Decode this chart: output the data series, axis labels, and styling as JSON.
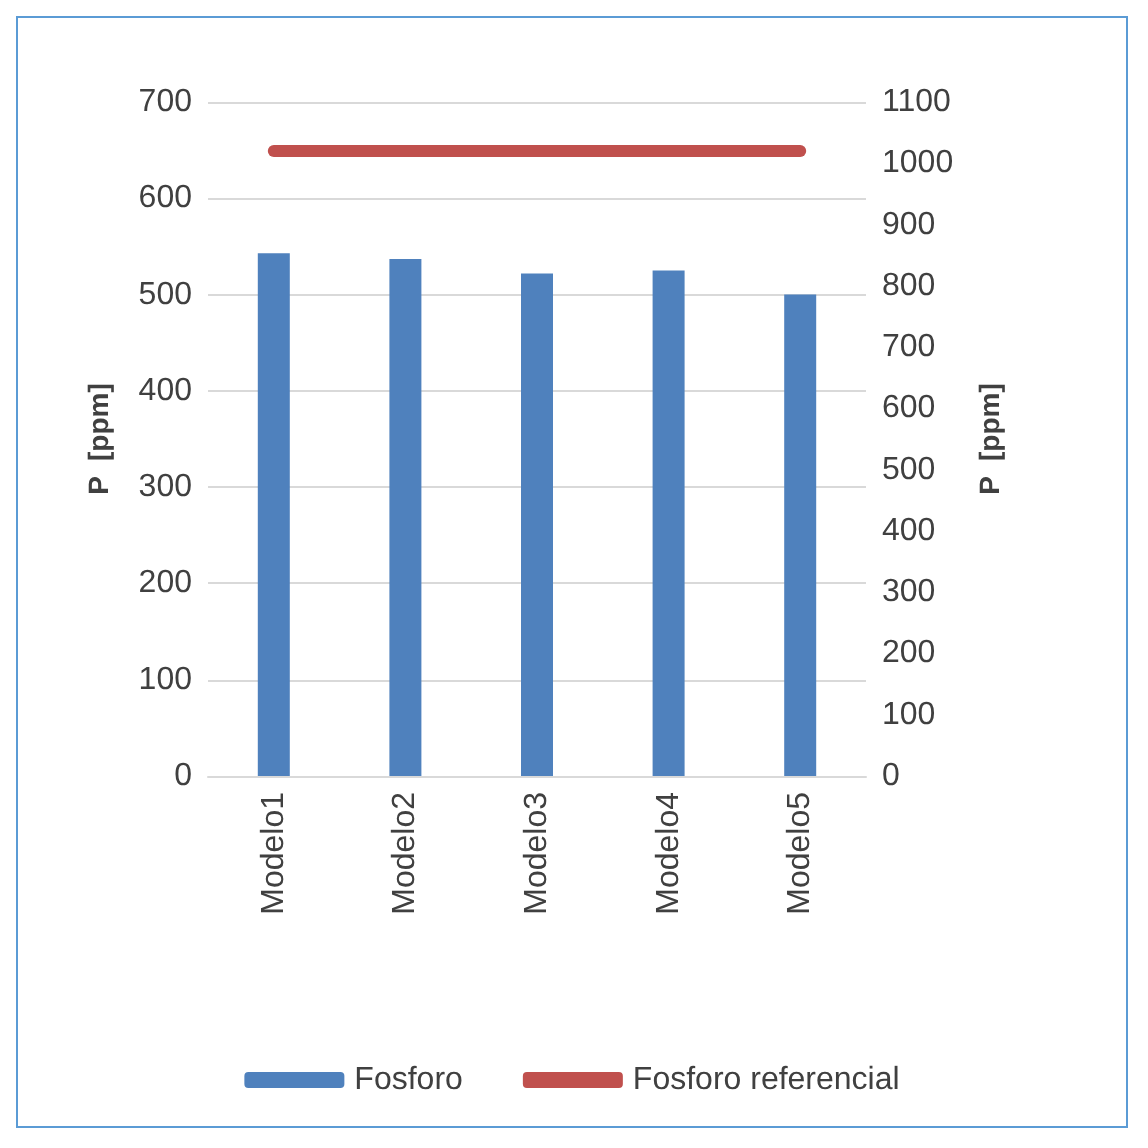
{
  "chart_data": {
    "type": "bar",
    "categories": [
      "Modelo1",
      "Modelo2",
      "Modelo3",
      "Modelo4",
      "Modelo5"
    ],
    "series": [
      {
        "name": "Fosforo",
        "color": "#4f81bd",
        "values": [
          543,
          537,
          522,
          525,
          500
        ]
      },
      {
        "name": "Fosforo referencial",
        "type": "line",
        "axis": "y2",
        "color": "#c0504d",
        "values": [
          1020,
          1020,
          1020,
          1020,
          1020
        ]
      }
    ],
    "ylabel": "P  [ppm]",
    "y2label": "P  [ppm]",
    "ylim": [
      0,
      700
    ],
    "yticks": [
      0,
      100,
      200,
      300,
      400,
      500,
      600,
      700
    ],
    "y2lim": [
      0,
      1100
    ],
    "y2ticks": [
      0,
      100,
      200,
      300,
      400,
      500,
      600,
      700,
      800,
      900,
      1000,
      1100
    ],
    "grid": "y",
    "legend": "bottom",
    "marker": "none"
  }
}
